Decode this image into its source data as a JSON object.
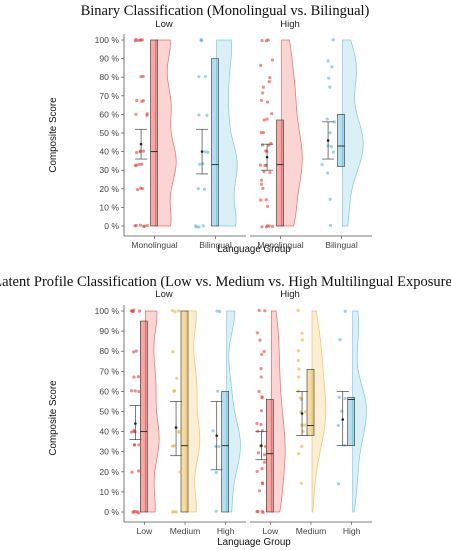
{
  "chart_data": [
    {
      "type": "raincloud",
      "title": "Binary Classification (Monolingual vs. Bilingual)",
      "xlabel": "Language Group",
      "ylabel": "Composite Score",
      "ylim": [
        0,
        100
      ],
      "yticks": [
        "0 %",
        "10 %",
        "20 %",
        "30 %",
        "40 %",
        "50 %",
        "60 %",
        "70 %",
        "80 %",
        "90 %",
        "100 %"
      ],
      "categories": [
        "Monolingual",
        "Bilingual"
      ],
      "colors": {
        "Monolingual": "#e8413c",
        "Bilingual": "#5bb8dc"
      },
      "panels": [
        {
          "label": "Low",
          "groups": [
            {
              "category": "Monolingual",
              "mean": 44,
              "ci": [
                36,
                52
              ],
              "box": {
                "q1": 0,
                "median": 40,
                "q3": 100
              },
              "points": [
                100,
                100,
                100,
                100,
                100,
                100,
                80,
                80,
                67,
                67,
                67,
                60,
                60,
                60,
                40,
                40,
                40,
                40,
                33,
                33,
                33,
                33,
                20,
                20,
                20,
                0,
                0,
                0,
                0,
                0,
                0
              ]
            },
            {
              "category": "Bilingual",
              "mean": 40,
              "ci": [
                28,
                52
              ],
              "box": {
                "q1": 0,
                "median": 33,
                "q3": 90
              },
              "points": [
                100,
                100,
                100,
                80,
                80,
                60,
                60,
                40,
                40,
                33,
                33,
                20,
                20,
                0,
                0,
                0,
                0
              ]
            }
          ]
        },
        {
          "label": "High",
          "groups": [
            {
              "category": "Monolingual",
              "mean": 37,
              "ci": [
                30,
                44
              ],
              "box": {
                "q1": 0,
                "median": 33,
                "q3": 57
              },
              "points": [
                100,
                100,
                100,
                89,
                86,
                80,
                78,
                75,
                71,
                67,
                67,
                60,
                57,
                57,
                50,
                50,
                44,
                43,
                43,
                40,
                40,
                33,
                33,
                33,
                29,
                29,
                25,
                22,
                20,
                14,
                14,
                11,
                0,
                0,
                0,
                0,
                0
              ]
            },
            {
              "category": "Bilingual",
              "mean": 46,
              "ci": [
                36,
                56
              ],
              "box": {
                "q1": 32,
                "median": 43,
                "q3": 60
              },
              "points": [
                100,
                89,
                86,
                80,
                75,
                57,
                56,
                50,
                43,
                43,
                40,
                33,
                29,
                14,
                0
              ]
            }
          ]
        }
      ]
    },
    {
      "type": "raincloud",
      "title": "Latent Profile Classification (Low vs. Medium vs. High Multilingual Exposure)",
      "xlabel": "Language Group",
      "ylabel": "Composite Score",
      "ylim": [
        0,
        100
      ],
      "yticks": [
        "0 %",
        "10 %",
        "20 %",
        "30 %",
        "40 %",
        "50 %",
        "60 %",
        "70 %",
        "80 %",
        "90 %",
        "100 %"
      ],
      "categories": [
        "Low",
        "Medium",
        "High"
      ],
      "colors": {
        "Low": "#e8413c",
        "Medium": "#e8b23a",
        "High": "#5bb8dc"
      },
      "panels": [
        {
          "label": "Low",
          "groups": [
            {
              "category": "Low",
              "mean": 44,
              "ci": [
                36,
                53
              ],
              "box": {
                "q1": 0,
                "median": 40,
                "q3": 95
              },
              "points": [
                100,
                100,
                100,
                100,
                100,
                100,
                80,
                80,
                67,
                67,
                60,
                60,
                60,
                40,
                40,
                40,
                40,
                33,
                33,
                33,
                20,
                20,
                0,
                0,
                0,
                0,
                0
              ]
            },
            {
              "category": "Medium",
              "mean": 42,
              "ci": [
                28,
                55
              ],
              "box": {
                "q1": 0,
                "median": 33,
                "q3": 100
              },
              "points": [
                100,
                100,
                100,
                80,
                67,
                60,
                60,
                40,
                40,
                33,
                33,
                20,
                0,
                0,
                0
              ]
            },
            {
              "category": "High",
              "mean": 38,
              "ci": [
                21,
                55
              ],
              "box": {
                "q1": 0,
                "median": 33,
                "q3": 60
              },
              "points": [
                100,
                100,
                60,
                40,
                33,
                33,
                20,
                0
              ]
            }
          ]
        },
        {
          "label": "High",
          "groups": [
            {
              "category": "Low",
              "mean": 33,
              "ci": [
                26,
                40
              ],
              "box": {
                "q1": 0,
                "median": 29,
                "q3": 56
              },
              "points": [
                100,
                100,
                89,
                86,
                80,
                78,
                71,
                67,
                60,
                57,
                57,
                50,
                44,
                43,
                40,
                40,
                33,
                33,
                29,
                29,
                25,
                22,
                20,
                14,
                14,
                11,
                0,
                0,
                0,
                0
              ]
            },
            {
              "category": "Medium",
              "mean": 49,
              "ci": [
                38,
                60
              ],
              "box": {
                "q1": 38,
                "median": 43,
                "q3": 71
              },
              "points": [
                100,
                89,
                86,
                80,
                75,
                71,
                67,
                60,
                57,
                56,
                50,
                50,
                43,
                43,
                40,
                33,
                29,
                14
              ]
            },
            {
              "category": "High",
              "mean": 46,
              "ci": [
                33,
                60
              ],
              "box": {
                "q1": 33,
                "median": 56,
                "q3": 57
              },
              "points": [
                100,
                86,
                57,
                56,
                50,
                43,
                33,
                14
              ]
            }
          ]
        }
      ]
    }
  ]
}
